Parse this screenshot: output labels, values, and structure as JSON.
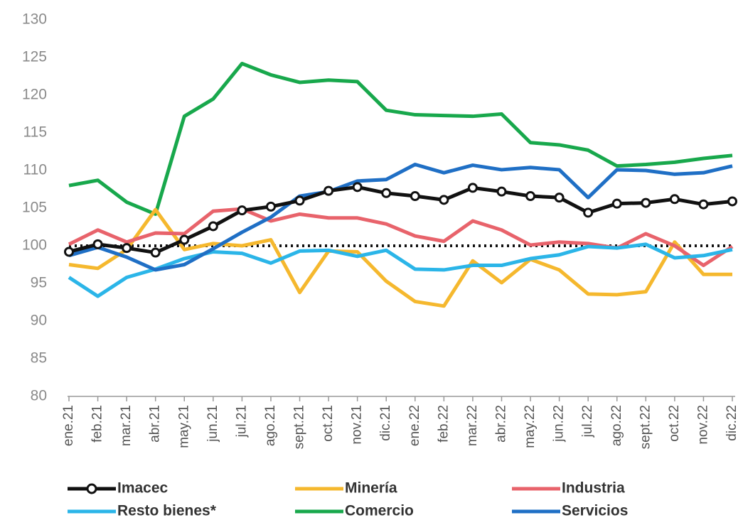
{
  "chart_data": {
    "type": "line",
    "categories": [
      "ene.21",
      "feb.21",
      "mar.21",
      "abr.21",
      "may.21",
      "jun.21",
      "jul.21",
      "ago.21",
      "sept.21",
      "oct.21",
      "nov.21",
      "dic.21",
      "ene.22",
      "feb.22",
      "mar.22",
      "abr.22",
      "may.22",
      "jun.22",
      "jul.22",
      "ago.22",
      "sept.22",
      "oct.22",
      "nov.22",
      "dic.22"
    ],
    "series": [
      {
        "name": "Imacec",
        "color": "#111111",
        "markers": true,
        "values": [
          99.2,
          100.2,
          99.7,
          99.1,
          100.8,
          102.6,
          104.7,
          105.2,
          106.0,
          107.3,
          107.8,
          107.0,
          106.6,
          106.1,
          107.7,
          107.2,
          106.6,
          106.4,
          104.4,
          105.6,
          105.7,
          106.2,
          105.5,
          105.9
        ]
      },
      {
        "name": "Minería",
        "color": "#f5b82e",
        "values": [
          97.5,
          97.0,
          99.5,
          104.8,
          99.5,
          100.3,
          100.0,
          100.8,
          93.8,
          99.3,
          99.2,
          95.3,
          92.6,
          92.0,
          98.0,
          95.1,
          98.2,
          96.8,
          93.6,
          93.5,
          93.9,
          100.5,
          96.2,
          96.2
        ]
      },
      {
        "name": "Industria",
        "color": "#e8636b",
        "values": [
          100.2,
          102.1,
          100.5,
          101.7,
          101.6,
          104.6,
          104.9,
          103.3,
          104.2,
          103.7,
          103.7,
          102.9,
          101.3,
          100.6,
          103.3,
          102.1,
          100.1,
          100.5,
          100.3,
          99.7,
          101.6,
          100.0,
          97.4,
          99.9
        ]
      },
      {
        "name": "Resto bienes*",
        "color": "#2bb5e8",
        "values": [
          95.8,
          93.3,
          95.8,
          96.9,
          98.3,
          99.2,
          99.0,
          97.7,
          99.3,
          99.4,
          98.6,
          99.4,
          96.9,
          96.8,
          97.4,
          97.4,
          98.3,
          98.8,
          99.9,
          99.7,
          100.2,
          98.4,
          98.7,
          99.5
        ]
      },
      {
        "name": "Comercio",
        "color": "#18a84c",
        "values": [
          108.0,
          108.7,
          105.8,
          104.2,
          117.2,
          119.5,
          124.2,
          122.7,
          121.7,
          122.0,
          121.8,
          118.0,
          117.4,
          117.3,
          117.2,
          117.5,
          113.7,
          113.4,
          112.7,
          110.6,
          110.8,
          111.1,
          111.6,
          112.0
        ]
      },
      {
        "name": "Servicios",
        "color": "#1f6fc5",
        "values": [
          98.7,
          99.8,
          98.5,
          96.8,
          97.5,
          99.6,
          101.8,
          103.8,
          106.6,
          107.2,
          108.6,
          108.8,
          110.8,
          109.7,
          110.7,
          110.1,
          110.4,
          110.1,
          106.4,
          110.1,
          110.0,
          109.5,
          109.7,
          110.6
        ]
      }
    ],
    "reference_line": 100,
    "ylim": [
      80,
      130
    ],
    "yticks": [
      80,
      85,
      90,
      95,
      100,
      105,
      110,
      115,
      120,
      125,
      130
    ],
    "grid": false,
    "legend": "bottom"
  }
}
